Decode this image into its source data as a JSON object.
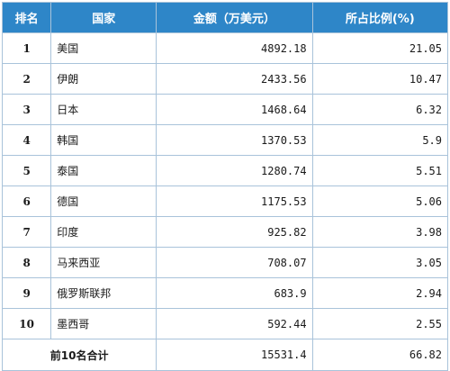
{
  "headers": {
    "rank": "排名",
    "country": "国家",
    "amount": "金额（万美元）",
    "share": "所占比例(%)"
  },
  "rows": [
    {
      "rank": "1",
      "country": "美国",
      "amount": "4892.18",
      "share": "21.05"
    },
    {
      "rank": "2",
      "country": "伊朗",
      "amount": "2433.56",
      "share": "10.47"
    },
    {
      "rank": "3",
      "country": "日本",
      "amount": "1468.64",
      "share": "6.32"
    },
    {
      "rank": "4",
      "country": "韩国",
      "amount": "1370.53",
      "share": "5.9"
    },
    {
      "rank": "5",
      "country": "泰国",
      "amount": "1280.74",
      "share": "5.51"
    },
    {
      "rank": "6",
      "country": "德国",
      "amount": "1175.53",
      "share": "5.06"
    },
    {
      "rank": "7",
      "country": "印度",
      "amount": "925.82",
      "share": "3.98"
    },
    {
      "rank": "8",
      "country": "马来西亚",
      "amount": "708.07",
      "share": "3.05"
    },
    {
      "rank": "9",
      "country": "俄罗斯联邦",
      "amount": "683.9",
      "share": "2.94"
    },
    {
      "rank": "10",
      "country": "墨西哥",
      "amount": "592.44",
      "share": "2.55"
    }
  ],
  "total": {
    "label": "前10名合计",
    "amount": "15531.4",
    "share": "66.82"
  }
}
